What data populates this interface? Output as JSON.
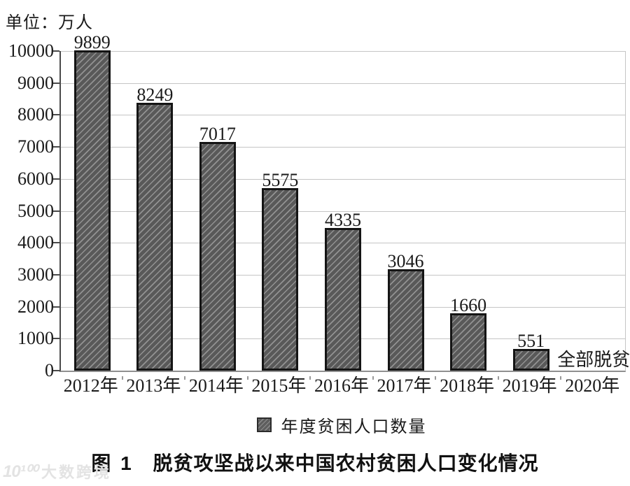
{
  "unit_label": "单位：万人",
  "chart_data": {
    "type": "bar",
    "title": "图 1 脱贫攻坚战以来中国农村贫困人口变化情况",
    "unit": "万人",
    "categories": [
      "2012年",
      "2013年",
      "2014年",
      "2015年",
      "2016年",
      "2017年",
      "2018年",
      "2019年",
      "2020年"
    ],
    "values": [
      9899,
      8249,
      7017,
      5575,
      4335,
      3046,
      1660,
      551,
      0
    ],
    "annotations": [
      {
        "index": 8,
        "category": "2020年",
        "text": "全部脱贫"
      }
    ],
    "legend": [
      {
        "label": "年度贫困人口数量"
      }
    ],
    "legend_position": "bottom",
    "ylim": [
      0,
      10000
    ],
    "ytick_step": 1000,
    "grid": "horizontal",
    "bar_color": "#595959",
    "bar_hatch": "diagonal-forward",
    "gridline_color": "#c5c5c5",
    "axis_color": "#4a4a4a"
  },
  "caption": {
    "figure_label": "图 1",
    "title": "脱贫攻坚战以来中国农村贫困人口变化情况"
  },
  "watermark": {
    "logo": "10¹⁰⁰",
    "name": "大数跨境"
  }
}
